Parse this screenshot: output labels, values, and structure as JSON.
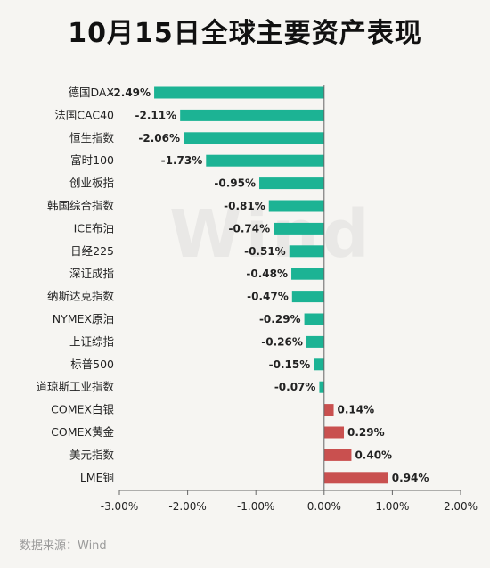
{
  "title": "10月15日全球主要资产表现",
  "source": "数据来源：Wind",
  "watermark": "Wind",
  "colors": {
    "negative": "#1cb394",
    "positive": "#c9504f",
    "axis": "#666666",
    "text": "#222222"
  },
  "chart_data": {
    "type": "bar",
    "orientation": "horizontal",
    "title": "10月15日全球主要资产表现",
    "categories": [
      "德国DAX",
      "法国CAC40",
      "恒生指数",
      "富时100",
      "创业板指",
      "韩国综合指数",
      "ICE布油",
      "日经225",
      "深证成指",
      "纳斯达克指数",
      "NYMEX原油",
      "上证综指",
      "标普500",
      "道琼斯工业指数",
      "COMEX白银",
      "COMEX黄金",
      "美元指数",
      "LME铜"
    ],
    "values": [
      -2.49,
      -2.11,
      -2.06,
      -1.73,
      -0.95,
      -0.81,
      -0.74,
      -0.51,
      -0.48,
      -0.47,
      -0.29,
      -0.26,
      -0.15,
      -0.07,
      0.14,
      0.29,
      0.4,
      0.94
    ],
    "value_labels": [
      "-2.49%",
      "-2.11%",
      "-2.06%",
      "-1.73%",
      "-0.95%",
      "-0.81%",
      "-0.74%",
      "-0.51%",
      "-0.48%",
      "-0.47%",
      "-0.29%",
      "-0.26%",
      "-0.15%",
      "-0.07%",
      "0.14%",
      "0.29%",
      "0.40%",
      "0.94%"
    ],
    "xlim": [
      -3.0,
      2.0
    ],
    "xticks": [
      -3.0,
      -2.0,
      -1.0,
      0.0,
      1.0,
      2.0
    ],
    "xtick_labels": [
      "-3.00%",
      "-2.00%",
      "-1.00%",
      "0.00%",
      "1.00%",
      "2.00%"
    ],
    "xlabel": "",
    "ylabel": "",
    "grid": false,
    "legend": "none"
  }
}
